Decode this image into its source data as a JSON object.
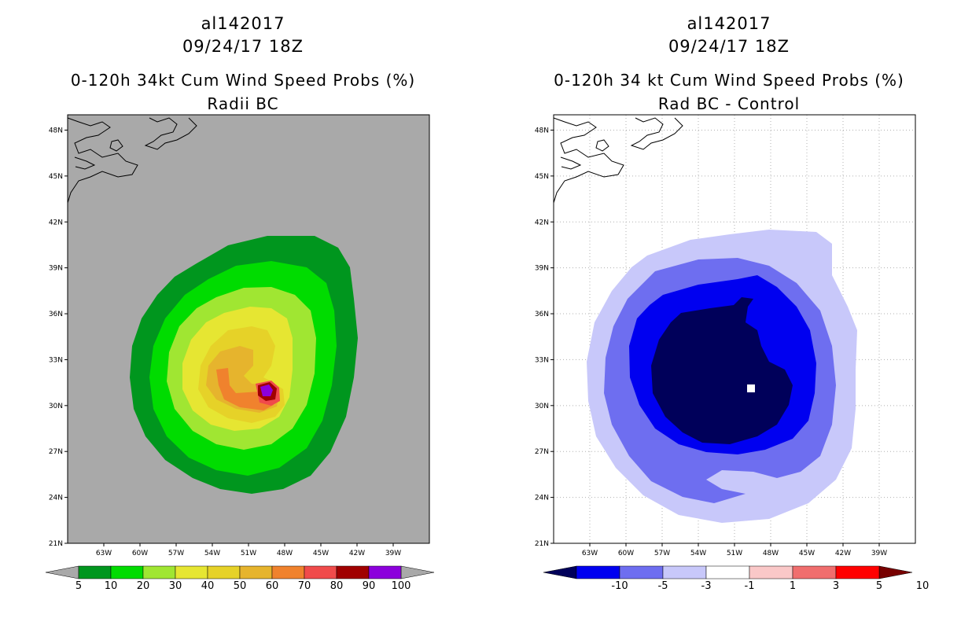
{
  "colors": {
    "gray_bg": "#a9a9a9",
    "left_scale": [
      "#00961e",
      "#00dc00",
      "#a0e632",
      "#e6e632",
      "#e6d228",
      "#e6b42d",
      "#f0822d",
      "#f04b4b",
      "#a00000",
      "#8c00dc"
    ],
    "right_scale": [
      "#00005a",
      "#0000f0",
      "#6e6ef0",
      "#c8c8fa",
      "#ffffff",
      "#fac8c8",
      "#f06e6e",
      "#ff0000",
      "#780000"
    ]
  },
  "chart_data": [
    {
      "type": "heatmap",
      "storm_id": "al142017",
      "date": "09/24/17 18Z",
      "title": "0-120h 34kt Cum Wind Speed Probs (%)",
      "subtitle": "Radii BC",
      "x_ticks": [
        "63W",
        "60W",
        "57W",
        "54W",
        "51W",
        "48W",
        "45W",
        "42W",
        "39W"
      ],
      "y_ticks": [
        "48N",
        "45N",
        "42N",
        "39N",
        "36N",
        "33N",
        "30N",
        "27N",
        "24N",
        "21N"
      ],
      "xlim_deg_west": [
        66,
        36
      ],
      "ylim_deg_north": [
        21,
        49
      ],
      "colorbar_labels": [
        "5",
        "10",
        "20",
        "30",
        "40",
        "50",
        "60",
        "70",
        "80",
        "90",
        "100"
      ],
      "center": {
        "lon_w": 49.5,
        "lat_n": 31.2
      }
    },
    {
      "type": "heatmap",
      "storm_id": "al142017",
      "date": "09/24/17 18Z",
      "title": "0-120h 34 kt Cum Wind Speed Probs (%)",
      "subtitle": "Rad BC - Control",
      "x_ticks": [
        "63W",
        "60W",
        "57W",
        "54W",
        "51W",
        "48W",
        "45W",
        "42W",
        "39W"
      ],
      "y_ticks": [
        "48N",
        "45N",
        "42N",
        "39N",
        "36N",
        "33N",
        "30N",
        "27N",
        "24N",
        "21N"
      ],
      "xlim_deg_west": [
        66,
        36
      ],
      "ylim_deg_north": [
        21,
        49
      ],
      "colorbar_labels": [
        "-10",
        "-5",
        "-3",
        "-1",
        "1",
        "3",
        "5",
        "10"
      ],
      "center": {
        "lon_w": 49.5,
        "lat_n": 31.2
      }
    }
  ]
}
